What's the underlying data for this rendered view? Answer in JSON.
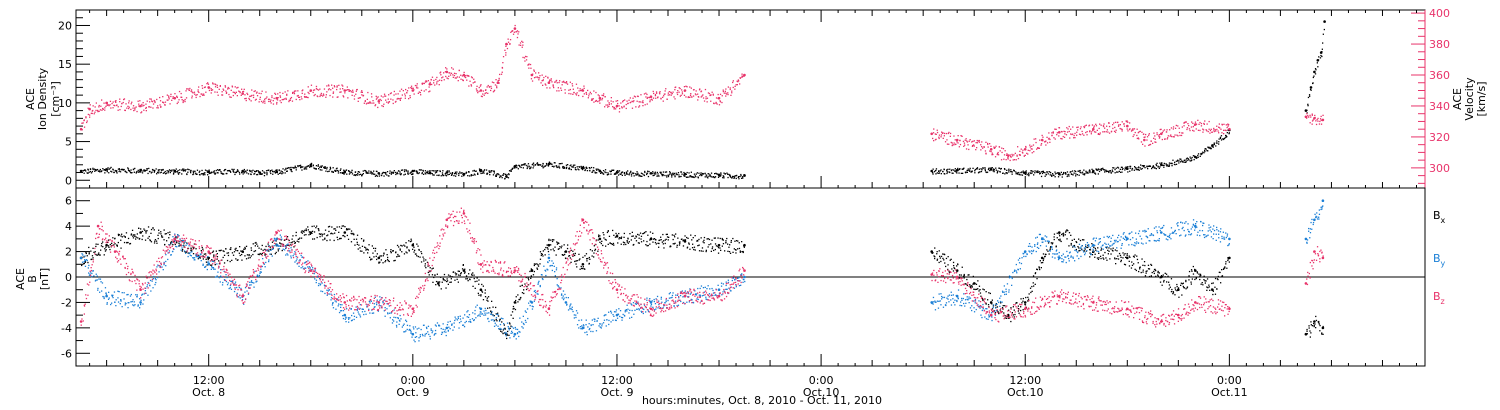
{
  "colors": {
    "black": "#000000",
    "pink": "#e8336a",
    "blue": "#1a7fd6"
  },
  "chart_data": [
    {
      "panel": "top",
      "type": "scatter",
      "ylabel_left": [
        "ACE",
        "Ion Density",
        "[cm⁻³]"
      ],
      "ylabel_right": [
        "ACE",
        "Velocity",
        "[km/s]"
      ],
      "ylim_left": [
        -1,
        22
      ],
      "ylim_right": [
        287,
        402
      ],
      "yticks_left": [
        0,
        5,
        10,
        15,
        20
      ],
      "yticks_right": [
        300,
        320,
        340,
        360,
        380,
        400
      ],
      "series": [
        {
          "name": "Density",
          "color": "#000000",
          "axis": "left",
          "segments": [
            {
              "x": [
                4.5,
                6.0,
                8.0,
                10.0,
                12.0,
                14.0,
                15.0,
                16.0,
                18.0,
                20.0,
                22.0,
                24.0,
                25.0,
                26.0,
                27.0,
                28.0,
                29.5,
                30.0,
                32.0,
                34.0,
                35.0,
                36.0,
                38.0,
                40.0,
                42.0,
                43.5
              ],
              "y": [
                1.2,
                1.4,
                1.3,
                1.2,
                1.1,
                1.2,
                1.0,
                1.1,
                2.0,
                1.1,
                0.9,
                1.2,
                1.0,
                1.0,
                0.8,
                1.3,
                0.5,
                1.8,
                2.1,
                1.6,
                1.2,
                1.0,
                0.9,
                0.8,
                0.7,
                0.6
              ]
            },
            {
              "x": [
                54.5,
                56.0,
                58.0,
                60.0,
                62.0,
                64.0,
                66.0,
                68.0,
                70.0,
                71.0,
                72.0
              ],
              "y": [
                1.2,
                1.3,
                1.4,
                1.0,
                0.8,
                1.2,
                1.5,
                2.0,
                3.0,
                4.5,
                6.5
              ]
            },
            {
              "x": [
                76.5,
                76.8,
                77.0,
                77.2,
                77.4,
                77.6
              ],
              "y": [
                9.0,
                12.0,
                14.0,
                15.5,
                16.5,
                20.5
              ]
            }
          ]
        },
        {
          "name": "Velocity",
          "color": "#e8336a",
          "axis": "right",
          "segments": [
            {
              "x": [
                4.5,
                5.0,
                6.0,
                8.0,
                10.0,
                12.0,
                14.0,
                16.0,
                18.0,
                20.0,
                22.0,
                24.0,
                25.0,
                26.0,
                27.0,
                28.0,
                29.0,
                29.5,
                30.0,
                31.0,
                32.0,
                34.0,
                35.0,
                36.0,
                38.0,
                40.0,
                42.0,
                43.5
              ],
              "y": [
                325,
                338,
                342,
                340,
                345,
                352,
                348,
                345,
                350,
                350,
                343,
                350,
                354,
                362,
                360,
                350,
                355,
                380,
                390,
                360,
                355,
                350,
                345,
                340,
                346,
                350,
                345,
                360
              ]
            },
            {
              "x": [
                54.5,
                56.0,
                58.0,
                59.0,
                60.0,
                61.0,
                62.0,
                64.0,
                66.0,
                67.0,
                68.0,
                70.0,
                72.0
              ],
              "y": [
                322,
                318,
                312,
                308,
                312,
                318,
                323,
                325,
                327,
                318,
                322,
                328,
                325
              ]
            },
            {
              "x": [
                76.5,
                77.0,
                77.5
              ],
              "y": [
                333,
                332,
                331
              ]
            }
          ]
        }
      ]
    },
    {
      "panel": "bottom",
      "type": "scatter",
      "ylabel_left": [
        "ACE",
        "B",
        "[nT]"
      ],
      "ylim": [
        -7,
        7
      ],
      "yticks": [
        -6,
        -4,
        -2,
        0,
        2,
        4,
        6
      ],
      "zero_line": true,
      "series": [
        {
          "name": "Bx",
          "color": "#000000",
          "segments": [
            {
              "x": [
                4.5,
                6.0,
                8.0,
                10.0,
                12.0,
                14.0,
                16.0,
                18.0,
                20.0,
                22.0,
                24.0,
                25.5,
                27.0,
                28.0,
                29.5,
                30.0,
                31.0,
                32.0,
                33.0,
                34.0,
                35.0,
                36.0,
                38.0,
                40.0,
                42.0,
                43.5
              ],
              "y": [
                1.5,
                2.5,
                3.5,
                3.0,
                1.5,
                2.0,
                2.5,
                3.5,
                3.5,
                1.5,
                2.5,
                -0.5,
                0.5,
                -1.0,
                -4.5,
                -2.0,
                0.5,
                2.5,
                2.0,
                1.0,
                3.0,
                3.2,
                3.0,
                2.8,
                2.5,
                2.5
              ]
            },
            {
              "x": [
                54.5,
                56.0,
                57.0,
                58.0,
                59.0,
                60.0,
                61.0,
                62.0,
                64.0,
                66.0,
                68.0,
                69.0,
                70.0,
                71.0,
                72.0
              ],
              "y": [
                2.0,
                0.5,
                -0.5,
                -2.0,
                -3.0,
                -2.0,
                1.5,
                3.5,
                2.0,
                1.5,
                0.0,
                -1.0,
                0.5,
                -1.0,
                1.5
              ]
            },
            {
              "x": [
                76.5,
                77.0,
                77.5
              ],
              "y": [
                -4.5,
                -3.5,
                -4.0
              ]
            }
          ]
        },
        {
          "name": "By",
          "color": "#1a7fd6",
          "segments": [
            {
              "x": [
                4.5,
                6.0,
                8.0,
                10.0,
                12.0,
                14.0,
                16.0,
                18.0,
                20.0,
                22.0,
                24.0,
                26.0,
                28.0,
                30.0,
                31.0,
                32.0,
                33.0,
                34.0,
                36.0,
                38.0,
                40.0,
                42.0,
                43.5
              ],
              "y": [
                1.5,
                -1.5,
                -2.0,
                3.0,
                1.0,
                -1.5,
                3.0,
                0.5,
                -3.0,
                -2.0,
                -4.5,
                -4.0,
                -2.5,
                -4.5,
                -2.0,
                1.5,
                -2.0,
                -4.0,
                -3.0,
                -2.0,
                -1.5,
                -1.0,
                0.0
              ]
            },
            {
              "x": [
                54.5,
                56.0,
                58.0,
                60.0,
                61.0,
                62.0,
                64.0,
                66.0,
                68.0,
                70.0,
                72.0
              ],
              "y": [
                -2.0,
                -1.5,
                -3.0,
                2.0,
                3.0,
                1.5,
                2.5,
                3.0,
                3.5,
                4.0,
                3.0
              ]
            },
            {
              "x": [
                76.5,
                77.0,
                77.5
              ],
              "y": [
                3.0,
                4.5,
                6.0
              ]
            }
          ]
        },
        {
          "name": "Bz",
          "color": "#e8336a",
          "segments": [
            {
              "x": [
                4.5,
                5.5,
                6.5,
                8.0,
                10.0,
                12.0,
                14.0,
                16.0,
                18.0,
                20.0,
                22.0,
                24.0,
                26.0,
                27.0,
                28.0,
                30.0,
                32.0,
                34.0,
                36.0,
                38.0,
                40.0,
                42.0,
                43.5
              ],
              "y": [
                -3.5,
                4.0,
                2.0,
                -1.0,
                3.0,
                2.0,
                -1.5,
                3.5,
                0.5,
                -2.0,
                -2.0,
                -2.5,
                4.5,
                5.0,
                1.0,
                0.5,
                -2.5,
                4.5,
                -1.0,
                -2.5,
                -1.5,
                -1.5,
                0.5
              ]
            },
            {
              "x": [
                54.5,
                56.0,
                58.0,
                60.0,
                62.0,
                64.0,
                66.0,
                68.0,
                69.0,
                70.0,
                72.0
              ],
              "y": [
                0.2,
                0.0,
                -3.0,
                -2.5,
                -1.5,
                -2.0,
                -2.5,
                -3.5,
                -3.0,
                -2.0,
                -2.5
              ]
            },
            {
              "x": [
                76.5,
                77.0,
                77.5
              ],
              "y": [
                -0.5,
                2.0,
                1.5
              ]
            }
          ]
        }
      ],
      "legend": [
        {
          "label": "B",
          "sub": "x",
          "color": "#000000"
        },
        {
          "label": "B",
          "sub": "y",
          "color": "#1a7fd6"
        },
        {
          "label": "B",
          "sub": "z",
          "color": "#e8336a"
        }
      ]
    }
  ],
  "x_axis": {
    "unit": "hours since 0:00 Oct. 8, 2010",
    "xlim": [
      4.2,
      83.5
    ],
    "major_ticks": [
      {
        "x": 12,
        "line1": "12:00",
        "line2": "Oct. 8"
      },
      {
        "x": 24,
        "line1": "0:00",
        "line2": "Oct. 9"
      },
      {
        "x": 36,
        "line1": "12:00",
        "line2": "Oct. 9"
      },
      {
        "x": 48,
        "line1": "0:00",
        "line2": "Oct.10"
      },
      {
        "x": 60,
        "line1": "12:00",
        "line2": "Oct.10"
      },
      {
        "x": 72,
        "line1": "0:00",
        "line2": "Oct.11"
      }
    ],
    "xlabel": "hours:minutes, Oct.  8, 2010 - Oct. 11, 2010"
  }
}
